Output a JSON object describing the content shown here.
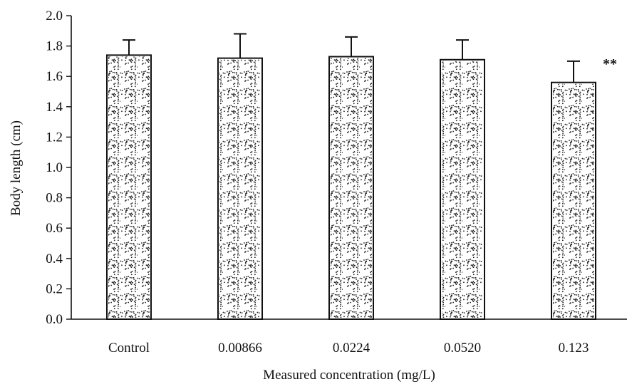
{
  "chart_data": {
    "type": "bar",
    "categories": [
      "Control",
      "0.00866",
      "0.0224",
      "0.0520",
      "0.123"
    ],
    "values": [
      1.74,
      1.72,
      1.73,
      1.71,
      1.56
    ],
    "error_upper": [
      1.84,
      1.88,
      1.86,
      1.84,
      1.7
    ],
    "annotations": [
      "",
      "",
      "",
      "",
      "**"
    ],
    "xlabel": "Measured concentration (mg/L)",
    "ylabel": "Body length (cm)",
    "ylim": [
      0.0,
      2.0
    ],
    "yticks": [
      "0.0",
      "0.2",
      "0.4",
      "0.6",
      "0.8",
      "1.0",
      "1.2",
      "1.4",
      "1.6",
      "1.8",
      "2.0"
    ],
    "grid": false,
    "bar_pattern": "stippled",
    "colors": {
      "bar_fill": "#ffffff",
      "bar_stroke": "#111111",
      "stipple": "#222222",
      "axis": "#111111"
    }
  }
}
